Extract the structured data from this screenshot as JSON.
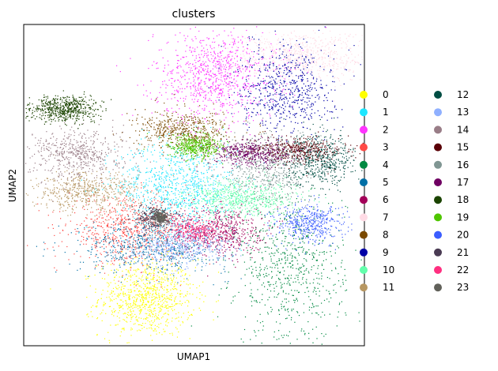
{
  "chart_data": {
    "type": "scatter",
    "title": "clusters",
    "xlabel": "UMAP1",
    "ylabel": "UMAP2",
    "grid": false,
    "ticks": false,
    "legend": {
      "placement": "right",
      "columns": 2
    },
    "series": [
      {
        "name": "0",
        "color": "#ffff00",
        "center": [
          0.36,
          0.15
        ],
        "spread": [
          0.07,
          0.06
        ],
        "density": 1.0
      },
      {
        "name": "1",
        "color": "#1ce6ff",
        "center": [
          0.45,
          0.5
        ],
        "spread": [
          0.09,
          0.07
        ],
        "density": 1.0
      },
      {
        "name": "2",
        "color": "#ff34ff",
        "center": [
          0.56,
          0.84
        ],
        "spread": [
          0.09,
          0.07
        ],
        "density": 1.0
      },
      {
        "name": "3",
        "color": "#ff4a46",
        "center": [
          0.31,
          0.36
        ],
        "spread": [
          0.09,
          0.05
        ],
        "density": 0.8
      },
      {
        "name": "4",
        "color": "#008941",
        "center": [
          0.78,
          0.24
        ],
        "spread": [
          0.08,
          0.12
        ],
        "density": 0.8
      },
      {
        "name": "5",
        "color": "#006fa6",
        "center": [
          0.38,
          0.31
        ],
        "spread": [
          0.11,
          0.04
        ],
        "density": 0.7
      },
      {
        "name": "6",
        "color": "#a30059",
        "center": [
          0.58,
          0.36
        ],
        "spread": [
          0.06,
          0.04
        ],
        "density": 0.6
      },
      {
        "name": "7",
        "color": "#ffdbe5",
        "center": [
          0.81,
          0.9
        ],
        "spread": [
          0.1,
          0.04
        ],
        "density": 0.8
      },
      {
        "name": "8",
        "color": "#7a4900",
        "center": [
          0.47,
          0.67
        ],
        "spread": [
          0.07,
          0.03
        ],
        "density": 0.6
      },
      {
        "name": "9",
        "color": "#0000a6",
        "center": [
          0.77,
          0.8
        ],
        "spread": [
          0.07,
          0.07
        ],
        "density": 0.7
      },
      {
        "name": "10",
        "color": "#63ffac",
        "center": [
          0.64,
          0.46
        ],
        "spread": [
          0.08,
          0.03
        ],
        "density": 0.7
      },
      {
        "name": "11",
        "color": "#b79762",
        "center": [
          0.18,
          0.48
        ],
        "spread": [
          0.08,
          0.03
        ],
        "density": 0.6
      },
      {
        "name": "12",
        "color": "#004d43",
        "center": [
          0.87,
          0.58
        ],
        "spread": [
          0.05,
          0.04
        ],
        "density": 0.6
      },
      {
        "name": "13",
        "color": "#8fb0ff",
        "center": [
          0.46,
          0.31
        ],
        "spread": [
          0.07,
          0.03
        ],
        "density": 0.5
      },
      {
        "name": "14",
        "color": "#997d87",
        "center": [
          0.16,
          0.6
        ],
        "spread": [
          0.07,
          0.04
        ],
        "density": 0.6
      },
      {
        "name": "15",
        "color": "#5a0007",
        "center": [
          0.8,
          0.61
        ],
        "spread": [
          0.07,
          0.02
        ],
        "density": 0.5
      },
      {
        "name": "16",
        "color": "#809693",
        "center": [
          0.71,
          0.56
        ],
        "spread": [
          0.07,
          0.05
        ],
        "density": 0.6
      },
      {
        "name": "17",
        "color": "#6f0062",
        "center": [
          0.66,
          0.6
        ],
        "spread": [
          0.06,
          0.02
        ],
        "density": 0.5
      },
      {
        "name": "18",
        "color": "#1b4400",
        "center": [
          0.12,
          0.74
        ],
        "spread": [
          0.05,
          0.02
        ],
        "density": 0.7
      },
      {
        "name": "19",
        "color": "#4fc601",
        "center": [
          0.5,
          0.62
        ],
        "spread": [
          0.04,
          0.02
        ],
        "density": 0.5
      },
      {
        "name": "20",
        "color": "#3b5dff",
        "center": [
          0.84,
          0.38
        ],
        "spread": [
          0.05,
          0.03
        ],
        "density": 0.5
      },
      {
        "name": "21",
        "color": "#4a3b53",
        "center": [
          0.38,
          0.4
        ],
        "spread": [
          0.03,
          0.02
        ],
        "density": 0.3
      },
      {
        "name": "22",
        "color": "#ff2f80",
        "center": [
          0.5,
          0.36
        ],
        "spread": [
          0.04,
          0.02
        ],
        "density": 0.3
      },
      {
        "name": "23",
        "color": "#61615a",
        "center": [
          0.4,
          0.4
        ],
        "spread": [
          0.01,
          0.01
        ],
        "density": 0.3
      }
    ]
  }
}
